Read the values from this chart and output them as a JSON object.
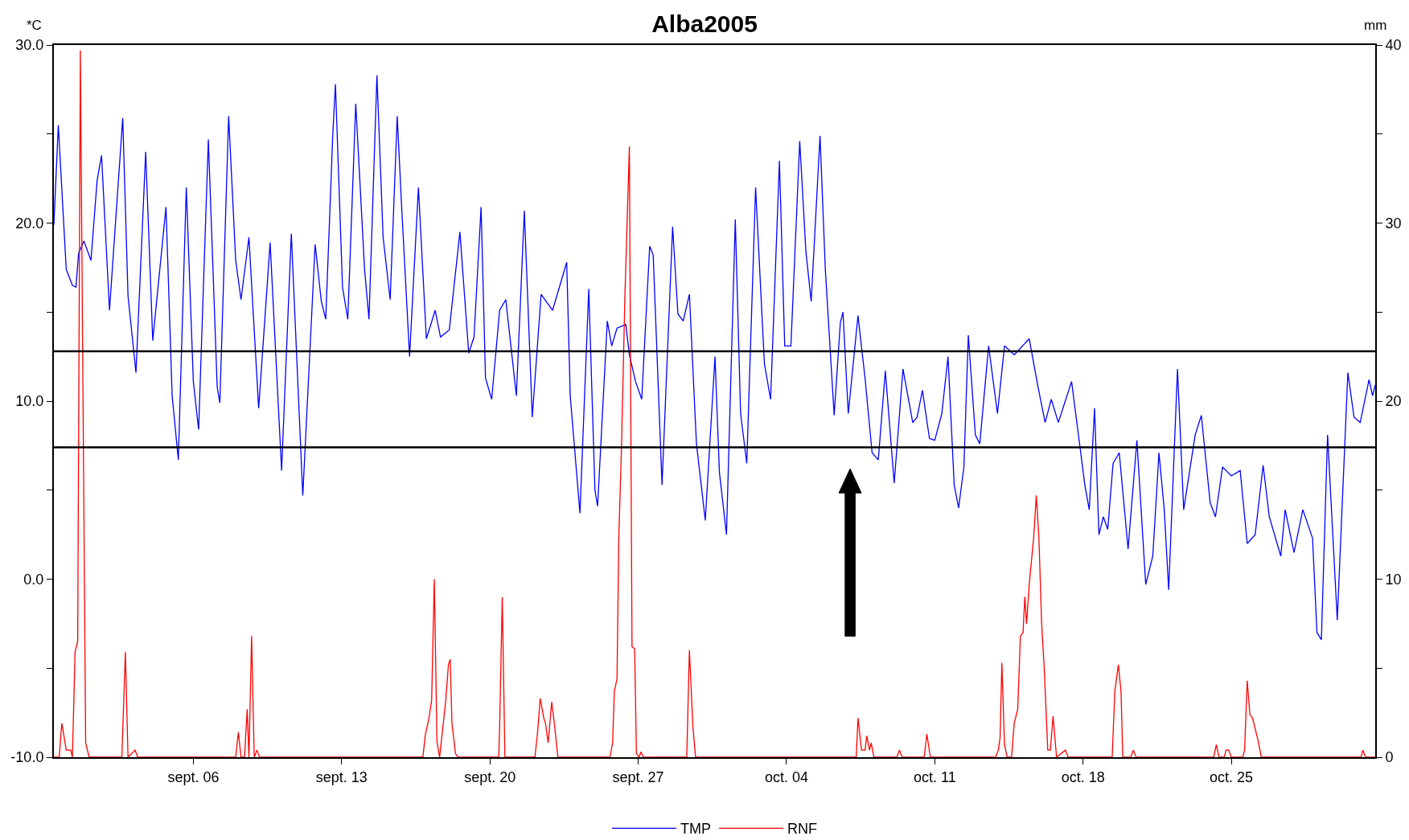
{
  "chart_data": {
    "type": "line",
    "title": "Alba2005",
    "ylabel": "*C",
    "y2label": "mm",
    "xlim": [
      "2005-08-30T10:00",
      "2005-10-31T19:00"
    ],
    "xticks": [
      {
        "value": "2005-09-06",
        "label": "sept. 06"
      },
      {
        "value": "2005-09-13",
        "label": "sept. 13"
      },
      {
        "value": "2005-09-20",
        "label": "sept. 20"
      },
      {
        "value": "2005-09-27",
        "label": "sept. 27"
      },
      {
        "value": "2005-10-04",
        "label": "oct. 04"
      },
      {
        "value": "2005-10-11",
        "label": "oct. 11"
      },
      {
        "value": "2005-10-18",
        "label": "oct. 18"
      },
      {
        "value": "2005-10-25",
        "label": "oct. 25"
      }
    ],
    "ylim": [
      -10,
      30
    ],
    "yticks": [
      {
        "value": -10,
        "label": "-10.0"
      },
      {
        "value": -5,
        "label": null
      },
      {
        "value": 0,
        "label": "0.0"
      },
      {
        "value": 5,
        "label": null
      },
      {
        "value": 10,
        "label": "10.0"
      },
      {
        "value": 15,
        "label": null
      },
      {
        "value": 20,
        "label": "20.0"
      },
      {
        "value": 25,
        "label": null
      },
      {
        "value": 30,
        "label": "30.0"
      }
    ],
    "y2lim": [
      0,
      40
    ],
    "y2ticks": [
      0,
      {
        "value": 5,
        "label": null
      },
      10,
      {
        "value": 15,
        "label": null
      },
      20,
      {
        "value": 25,
        "label": null
      },
      30,
      {
        "value": 35,
        "label": null
      },
      40
    ],
    "legend": "bottom",
    "marker": "none",
    "line_style": "solid",
    "ref_lines": [
      {
        "axis": "y",
        "value": 12.8,
        "color": "#000000"
      },
      {
        "axis": "y",
        "value": 7.4,
        "color": "#000000"
      }
    ],
    "series": [
      {
        "name": "TMP",
        "color": "#0000ff",
        "axis": "y",
        "x": [
          "2005-08-30T10:00",
          "2005-08-30T15:00",
          "2005-08-31T00:00",
          "2005-08-31T07:00",
          "2005-08-31T11:00",
          "2005-08-31T14:00",
          "2005-08-31T20:00",
          "2005-09-01T04:00",
          "2005-09-01T11:00",
          "2005-09-01T16:00",
          "2005-09-02T01:00",
          "2005-09-02T16:00",
          "2005-09-02T22:00",
          "2005-09-03T07:00",
          "2005-09-03T18:00",
          "2005-09-04T02:00",
          "2005-09-04T17:00",
          "2005-09-05T00:00",
          "2005-09-05T07:00",
          "2005-09-05T16:00",
          "2005-09-06T00:00",
          "2005-09-06T06:00",
          "2005-09-06T17:00",
          "2005-09-07T03:00",
          "2005-09-07T06:00",
          "2005-09-07T16:00",
          "2005-09-08T00:00",
          "2005-09-08T06:00",
          "2005-09-08T15:00",
          "2005-09-09T02:00",
          "2005-09-09T15:00",
          "2005-09-10T04:00",
          "2005-09-10T15:00",
          "2005-09-11T04:00",
          "2005-09-11T18:00",
          "2005-09-12T01:00",
          "2005-09-12T06:00",
          "2005-09-12T14:00",
          "2005-09-12T17:00",
          "2005-09-13T01:00",
          "2005-09-13T07:00",
          "2005-09-13T16:00",
          "2005-09-14T02:00",
          "2005-09-14T07:00",
          "2005-09-14T16:00",
          "2005-09-14T23:00",
          "2005-09-15T07:00",
          "2005-09-15T15:00",
          "2005-09-15T20:00",
          "2005-09-16T05:00",
          "2005-09-16T15:00",
          "2005-09-17T00:00",
          "2005-09-17T10:00",
          "2005-09-17T16:00",
          "2005-09-18T02:00",
          "2005-09-18T14:00",
          "2005-09-19T00:00",
          "2005-09-19T06:00",
          "2005-09-19T14:00",
          "2005-09-19T19:00",
          "2005-09-20T02:00",
          "2005-09-20T11:00",
          "2005-09-20T18:00",
          "2005-09-21T06:00",
          "2005-09-21T15:00",
          "2005-09-22T00:00",
          "2005-09-22T10:00",
          "2005-09-22T23:00",
          "2005-09-23T15:00",
          "2005-09-23T19:00",
          "2005-09-24T06:00",
          "2005-09-24T16:00",
          "2005-09-24T23:00",
          "2005-09-25T02:00",
          "2005-09-25T13:00",
          "2005-09-25T18:00",
          "2005-09-26T00:00",
          "2005-09-26T10:00",
          "2005-09-26T14:00",
          "2005-09-26T21:00",
          "2005-09-27T04:00",
          "2005-09-27T13:00",
          "2005-09-27T17:00",
          "2005-09-28T03:00",
          "2005-09-28T15:00",
          "2005-09-28T21:00",
          "2005-09-29T03:00",
          "2005-09-29T10:00",
          "2005-09-29T18:00",
          "2005-09-30T04:00",
          "2005-09-30T15:00",
          "2005-09-30T20:00",
          "2005-10-01T04:00",
          "2005-10-01T14:00",
          "2005-10-01T20:00",
          "2005-10-02T03:00",
          "2005-10-02T13:00",
          "2005-10-02T23:00",
          "2005-10-03T06:00",
          "2005-10-03T16:00",
          "2005-10-03T22:00",
          "2005-10-04T05:00",
          "2005-10-04T15:00",
          "2005-10-04T22:00",
          "2005-10-05T04:00",
          "2005-10-05T14:00",
          "2005-10-05T20:00",
          "2005-10-06T06:00",
          "2005-10-06T13:00",
          "2005-10-06T16:00",
          "2005-10-06T22:00",
          "2005-10-07T09:00",
          "2005-10-07T17:00",
          "2005-10-08T01:00",
          "2005-10-08T08:00",
          "2005-10-08T16:00",
          "2005-10-09T02:00",
          "2005-10-09T12:00",
          "2005-10-09T23:00",
          "2005-10-10T04:00",
          "2005-10-10T10:00",
          "2005-10-10T18:00",
          "2005-10-11T00:00",
          "2005-10-11T08:00",
          "2005-10-11T15:00",
          "2005-10-11T22:00",
          "2005-10-12T03:00",
          "2005-10-12T09:00",
          "2005-10-12T14:00",
          "2005-10-12T22:00",
          "2005-10-13T03:00",
          "2005-10-13T13:00",
          "2005-10-13T23:00",
          "2005-10-14T07:00",
          "2005-10-14T18:00",
          "2005-10-15T11:00",
          "2005-10-15T21:00",
          "2005-10-16T05:00",
          "2005-10-16T12:00",
          "2005-10-16T20:00",
          "2005-10-17T11:00",
          "2005-10-18T02:00",
          "2005-10-18T07:00",
          "2005-10-18T13:00",
          "2005-10-18T18:00",
          "2005-10-18T23:00",
          "2005-10-19T04:00",
          "2005-10-19T10:00",
          "2005-10-19T17:00",
          "2005-10-20T03:00",
          "2005-10-20T13:00",
          "2005-10-20T23:00",
          "2005-10-21T07:00",
          "2005-10-21T14:00",
          "2005-10-21T20:00",
          "2005-10-22T01:00",
          "2005-10-22T11:00",
          "2005-10-22T18:00",
          "2005-10-23T07:00",
          "2005-10-23T14:00",
          "2005-10-24T00:00",
          "2005-10-24T06:00",
          "2005-10-24T14:00",
          "2005-10-25T00:00",
          "2005-10-25T10:00",
          "2005-10-25T18:00",
          "2005-10-26T03:00",
          "2005-10-26T12:00",
          "2005-10-26T19:00",
          "2005-10-27T08:00",
          "2005-10-27T13:00",
          "2005-10-27T23:00",
          "2005-10-28T09:00",
          "2005-10-28T20:00",
          "2005-10-29T01:00",
          "2005-10-29T06:00",
          "2005-10-29T13:00",
          "2005-10-30T00:00",
          "2005-10-30T12:00",
          "2005-10-30T19:00",
          "2005-10-31T02:00",
          "2005-10-31T12:00",
          "2005-10-31T16:00",
          "2005-10-31T19:00"
        ],
        "values": [
          19.9,
          25.5,
          17.4,
          16.5,
          16.4,
          18.3,
          19.0,
          17.9,
          22.4,
          23.8,
          15.1,
          25.9,
          15.9,
          11.6,
          24.0,
          13.4,
          20.9,
          10.3,
          6.7,
          22.0,
          11.1,
          8.4,
          24.7,
          10.8,
          9.9,
          26.0,
          17.9,
          15.7,
          19.2,
          9.6,
          18.9,
          6.1,
          19.4,
          4.7,
          18.8,
          15.6,
          14.6,
          25.0,
          27.8,
          16.4,
          14.6,
          26.7,
          17.4,
          14.6,
          28.3,
          19.2,
          15.7,
          26.0,
          20.9,
          12.5,
          22.0,
          13.5,
          15.1,
          13.6,
          14.0,
          19.5,
          12.7,
          13.6,
          20.9,
          11.3,
          10.1,
          15.1,
          15.7,
          10.3,
          20.7,
          9.1,
          16.0,
          15.1,
          17.8,
          10.3,
          3.7,
          16.3,
          5.0,
          4.1,
          14.5,
          13.1,
          14.1,
          14.3,
          12.6,
          11.1,
          10.1,
          18.7,
          18.2,
          5.3,
          19.8,
          14.9,
          14.5,
          16.0,
          7.6,
          3.3,
          12.5,
          6.0,
          2.5,
          20.2,
          9.3,
          6.5,
          22.0,
          12.1,
          10.1,
          23.5,
          13.1,
          13.1,
          24.6,
          18.4,
          15.6,
          24.9,
          17.4,
          9.2,
          14.4,
          15.0,
          9.3,
          14.8,
          11.3,
          7.1,
          6.7,
          11.7,
          5.4,
          11.8,
          8.8,
          9.1,
          10.6,
          7.9,
          7.8,
          9.3,
          12.5,
          5.3,
          4.0,
          6.3,
          13.7,
          8.1,
          7.6,
          13.1,
          9.3,
          13.1,
          12.6,
          13.5,
          10.8,
          8.8,
          10.1,
          8.8,
          11.1,
          5.3,
          3.9,
          9.6,
          2.5,
          3.5,
          2.8,
          6.5,
          7.1,
          1.7,
          7.8,
          -0.3,
          1.3,
          7.1,
          3.9,
          -0.6,
          11.8,
          3.9,
          8.1,
          9.2,
          4.3,
          3.5,
          6.3,
          5.8,
          6.1,
          2.0,
          2.5,
          6.4,
          3.5,
          1.3,
          3.9,
          1.5,
          3.9,
          2.3,
          -3.0,
          -3.4,
          8.1,
          -2.3,
          11.6,
          9.1,
          8.8,
          11.2,
          10.3,
          10.9
        ]
      },
      {
        "name": "RNF",
        "color": "#ff0000",
        "axis": "y2",
        "x": [
          "2005-08-30T10:00",
          "2005-08-30T16:00",
          "2005-08-30T19:00",
          "2005-08-31T00:00",
          "2005-08-31T05:00",
          "2005-08-31T07:00",
          "2005-08-31T10:00",
          "2005-08-31T13:00",
          "2005-08-31T16:00",
          "2005-08-31T22:00",
          "2005-09-01T02:00",
          "2005-09-02T15:00",
          "2005-09-02T19:00",
          "2005-09-02T22:00",
          "2005-09-03T06:00",
          "2005-09-03T09:00",
          "2005-09-08T00:00",
          "2005-09-08T03:00",
          "2005-09-08T06:00",
          "2005-09-08T10:00",
          "2005-09-08T13:00",
          "2005-09-08T15:00",
          "2005-09-08T18:00",
          "2005-09-08T21:00",
          "2005-09-09T00:00",
          "2005-09-09T03:00",
          "2005-09-16T20:00",
          "2005-09-16T23:00",
          "2005-09-17T03:00",
          "2005-09-17T06:00",
          "2005-09-17T09:00",
          "2005-09-17T12:00",
          "2005-09-17T15:00",
          "2005-09-17T22:00",
          "2005-09-18T01:00",
          "2005-09-18T03:00",
          "2005-09-18T05:00",
          "2005-09-18T09:00",
          "2005-09-18T12:00",
          "2005-09-20T10:00",
          "2005-09-20T11:00",
          "2005-09-20T14:00",
          "2005-09-20T17:00",
          "2005-09-22T03:00",
          "2005-09-22T06:00",
          "2005-09-22T09:00",
          "2005-09-22T13:00",
          "2005-09-22T15:00",
          "2005-09-22T18:00",
          "2005-09-22T22:00",
          "2005-09-23T01:00",
          "2005-09-23T05:00",
          "2005-09-25T16:00",
          "2005-09-25T19:00",
          "2005-09-25T21:00",
          "2005-09-26T00:00",
          "2005-09-26T02:00",
          "2005-09-26T05:00",
          "2005-09-26T09:00",
          "2005-09-26T14:00",
          "2005-09-26T17:00",
          "2005-09-26T20:00",
          "2005-09-26T22:00",
          "2005-09-27T01:00",
          "2005-09-27T03:00",
          "2005-09-27T06:00",
          "2005-09-29T07:00",
          "2005-09-29T10:00",
          "2005-09-29T14:00",
          "2005-09-29T17:00",
          "2005-10-07T07:00",
          "2005-10-07T09:00",
          "2005-10-07T13:00",
          "2005-10-07T17:00",
          "2005-10-07T19:00",
          "2005-10-07T22:00",
          "2005-10-08T00:00",
          "2005-10-08T03:00",
          "2005-10-09T05:00",
          "2005-10-09T08:00",
          "2005-10-09T11:00",
          "2005-10-10T12:00",
          "2005-10-10T15:00",
          "2005-10-10T19:00",
          "2005-10-13T21:00",
          "2005-10-14T00:00",
          "2005-10-14T02:00",
          "2005-10-14T04:00",
          "2005-10-14T07:00",
          "2005-10-14T10:00",
          "2005-10-14T15:00",
          "2005-10-14T18:00",
          "2005-10-14T22:00",
          "2005-10-15T01:00",
          "2005-10-15T04:00",
          "2005-10-15T06:00",
          "2005-10-15T08:00",
          "2005-10-15T11:00",
          "2005-10-15T16:00",
          "2005-10-15T19:00",
          "2005-10-15T22:00",
          "2005-10-16T01:00",
          "2005-10-16T04:00",
          "2005-10-16T08:00",
          "2005-10-16T11:00",
          "2005-10-16T14:00",
          "2005-10-16T18:00",
          "2005-10-17T04:00",
          "2005-10-17T07:00",
          "2005-10-19T09:00",
          "2005-10-19T12:00",
          "2005-10-19T16:00",
          "2005-10-19T19:00",
          "2005-10-19T21:00",
          "2005-10-20T06:00",
          "2005-10-20T09:00",
          "2005-10-20T12:00",
          "2005-10-24T04:00",
          "2005-10-24T07:00",
          "2005-10-24T10:00",
          "2005-10-24T16:00",
          "2005-10-24T18:00",
          "2005-10-24T21:00",
          "2005-10-25T00:00",
          "2005-10-25T13:00",
          "2005-10-25T15:00",
          "2005-10-25T18:00",
          "2005-10-25T21:00",
          "2005-10-26T00:00",
          "2005-10-26T06:00",
          "2005-10-26T10:00",
          "2005-10-31T03:00",
          "2005-10-31T05:00",
          "2005-10-31T08:00",
          "2005-10-31T19:00"
        ],
        "values": [
          0,
          0,
          1.9,
          0.4,
          0.4,
          0,
          5.9,
          6.5,
          39.7,
          0.8,
          0,
          0,
          5.9,
          0,
          0.4,
          0,
          0,
          1.4,
          0,
          0,
          2.7,
          0,
          6.8,
          0,
          0.4,
          0,
          0,
          1.3,
          2.2,
          3.2,
          10.0,
          0.9,
          0,
          3.2,
          5.2,
          5.5,
          1.9,
          0.2,
          0,
          0,
          1.6,
          9.0,
          0,
          0,
          1.4,
          3.3,
          2.2,
          1.9,
          0.8,
          3.1,
          1.9,
          0,
          0,
          0.8,
          3.7,
          4.4,
          12.3,
          17.3,
          26.0,
          34.3,
          6.2,
          6.1,
          0.2,
          0,
          0.3,
          0,
          0,
          6.0,
          1.7,
          0,
          0,
          2.2,
          0.4,
          0.4,
          1.2,
          0.4,
          0.8,
          0,
          0,
          0.4,
          0,
          0,
          1.3,
          0,
          0,
          0.4,
          1.1,
          5.3,
          0.7,
          0,
          0,
          1.9,
          2.7,
          6.8,
          7.0,
          9.0,
          7.5,
          9.7,
          12.3,
          14.7,
          12.3,
          7.6,
          5.0,
          0.4,
          0.4,
          2.3,
          0,
          0.4,
          0,
          0,
          3.7,
          5.2,
          3.7,
          0,
          0,
          0.4,
          0,
          0,
          0.7,
          0,
          0,
          0.4,
          0.4,
          0,
          0,
          0.4,
          4.3,
          2.4,
          2.2,
          1.0,
          0,
          0,
          0.4,
          0,
          0
        ]
      }
    ]
  }
}
